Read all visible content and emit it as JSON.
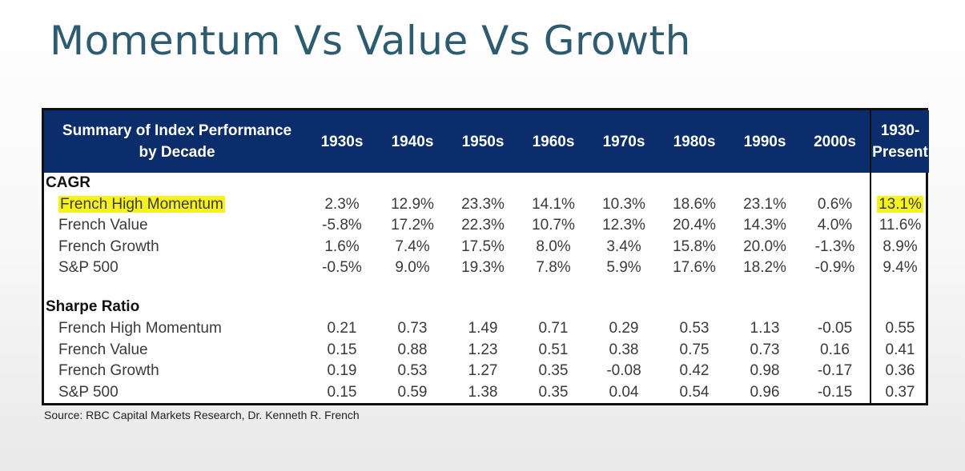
{
  "title": "Momentum Vs Value Vs Growth",
  "table": {
    "header": {
      "label_line1": "Summary of Index Performance",
      "label_line2": "by Decade",
      "decades": [
        "1930s",
        "1940s",
        "1950s",
        "1960s",
        "1970s",
        "1980s",
        "1990s",
        "2000s"
      ],
      "present_line1": "1930-",
      "present_line2": "Present"
    },
    "sections": [
      {
        "name": "CAGR",
        "rows": [
          {
            "label": "French High Momentum",
            "values": [
              "2.3%",
              "12.9%",
              "23.3%",
              "14.1%",
              "10.3%",
              "18.6%",
              "23.1%",
              "0.6%"
            ],
            "present": "13.1%"
          },
          {
            "label": "French Value",
            "values": [
              "-5.8%",
              "17.2%",
              "22.3%",
              "10.7%",
              "12.3%",
              "20.4%",
              "14.3%",
              "4.0%"
            ],
            "present": "11.6%"
          },
          {
            "label": "French Growth",
            "values": [
              "1.6%",
              "7.4%",
              "17.5%",
              "8.0%",
              "3.4%",
              "15.8%",
              "20.0%",
              "-1.3%"
            ],
            "present": "8.9%"
          },
          {
            "label": "S&P 500",
            "values": [
              "-0.5%",
              "9.0%",
              "19.3%",
              "7.8%",
              "5.9%",
              "17.6%",
              "18.2%",
              "-0.9%"
            ],
            "present": "9.4%"
          }
        ]
      },
      {
        "name": "Sharpe Ratio",
        "rows": [
          {
            "label": "French High Momentum",
            "values": [
              "0.21",
              "0.73",
              "1.49",
              "0.71",
              "0.29",
              "0.53",
              "1.13",
              "-0.05"
            ],
            "present": "0.55"
          },
          {
            "label": "French Value",
            "values": [
              "0.15",
              "0.88",
              "1.23",
              "0.51",
              "0.38",
              "0.75",
              "0.73",
              "0.16"
            ],
            "present": "0.41"
          },
          {
            "label": "French Growth",
            "values": [
              "0.19",
              "0.53",
              "1.27",
              "0.35",
              "-0.08",
              "0.42",
              "0.98",
              "-0.17"
            ],
            "present": "0.36"
          },
          {
            "label": "S&P 500",
            "values": [
              "0.15",
              "0.59",
              "1.38",
              "0.35",
              "0.04",
              "0.54",
              "0.96",
              "-0.15"
            ],
            "present": "0.37"
          }
        ]
      }
    ]
  },
  "source": "Source: RBC Capital Markets Research, Dr. Kenneth R. French",
  "colors": {
    "title": "#2d5b70",
    "header_bg": "#0b2d6b",
    "highlight": "#f5f21e"
  }
}
